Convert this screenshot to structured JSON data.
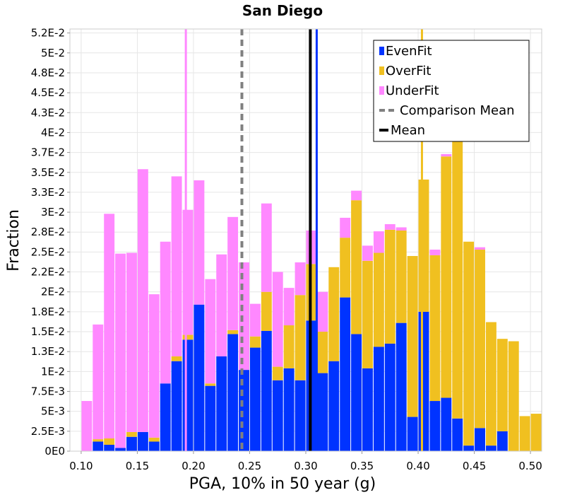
{
  "chart_data": {
    "type": "bar",
    "subtype": "stacked-histogram",
    "title": "San Diego",
    "xlabel": "PGA, 10% in 50 year (g)",
    "ylabel": "Fraction",
    "xlim": [
      0.09,
      0.51
    ],
    "ylim": [
      0,
      0.053
    ],
    "bin_width": 0.01,
    "x_ticks": [
      "0.10",
      "0.15",
      "0.20",
      "0.25",
      "0.30",
      "0.35",
      "0.40",
      "0.45",
      "0.50"
    ],
    "x_tick_values": [
      0.1,
      0.15,
      0.2,
      0.25,
      0.3,
      0.35,
      0.4,
      0.45,
      0.5
    ],
    "y_ticks": [
      "0E0",
      "2.5E-3",
      "5E-3",
      "7.5E-3",
      "1E-2",
      "1.3E-2",
      "1.5E-2",
      "1.8E-2",
      "2E-2",
      "2.2E-2",
      "2.5E-2",
      "2.8E-2",
      "3E-2",
      "3.3E-2",
      "3.5E-2",
      "3.7E-2",
      "4E-2",
      "4.3E-2",
      "4.5E-2",
      "4.8E-2",
      "5E-2",
      "5.2E-2"
    ],
    "y_tick_values": [
      0,
      0.0025,
      0.005,
      0.0075,
      0.01,
      0.0125,
      0.015,
      0.0175,
      0.02,
      0.0225,
      0.025,
      0.0275,
      0.03,
      0.0325,
      0.035,
      0.0375,
      0.04,
      0.0425,
      0.045,
      0.0475,
      0.05,
      0.0525
    ],
    "bin_starts": [
      0.09,
      0.1,
      0.11,
      0.12,
      0.13,
      0.14,
      0.15,
      0.16,
      0.17,
      0.18,
      0.19,
      0.2,
      0.21,
      0.22,
      0.23,
      0.24,
      0.25,
      0.26,
      0.27,
      0.28,
      0.29,
      0.3,
      0.31,
      0.32,
      0.33,
      0.34,
      0.35,
      0.36,
      0.37,
      0.38,
      0.39,
      0.4,
      0.41,
      0.42,
      0.43,
      0.44,
      0.45,
      0.46,
      0.47,
      0.48,
      0.49,
      0.5
    ],
    "series": [
      {
        "name": "EvenFit",
        "color": "#0033ff",
        "values": [
          0.0,
          0.0,
          0.0012,
          0.0008,
          0.0004,
          0.0018,
          0.0024,
          0.0012,
          0.0085,
          0.0113,
          0.014,
          0.0184,
          0.0082,
          0.0119,
          0.0147,
          0.0102,
          0.013,
          0.0151,
          0.0089,
          0.0104,
          0.0089,
          0.0164,
          0.0098,
          0.0113,
          0.0193,
          0.0147,
          0.0104,
          0.0131,
          0.0135,
          0.0161,
          0.0043,
          0.0175,
          0.0063,
          0.0067,
          0.0041,
          0.0007,
          0.0029,
          0.0007,
          0.0025,
          0.0,
          0.0,
          0.0
        ]
      },
      {
        "name": "OverFit",
        "color": "#f0c020",
        "values": [
          0.0,
          0.0,
          0.0003,
          0.0008,
          0.0,
          0.0006,
          0.0,
          0.0005,
          0.0,
          0.0006,
          0.0006,
          0.0,
          0.0003,
          0.0,
          0.0005,
          0.0,
          0.0014,
          0.0049,
          0.0017,
          0.0054,
          0.0107,
          0.0071,
          0.0052,
          0.0118,
          0.0075,
          0.0168,
          0.0135,
          0.0118,
          0.0143,
          0.0116,
          0.0202,
          0.0166,
          0.0183,
          0.0303,
          0.0358,
          0.0256,
          0.0224,
          0.0155,
          0.0116,
          0.0138,
          0.0044,
          0.0047
        ]
      },
      {
        "name": "UnderFit",
        "color": "#ff88ff",
        "values": [
          0.0,
          0.0063,
          0.0144,
          0.0282,
          0.0244,
          0.0225,
          0.033,
          0.018,
          0.0178,
          0.0226,
          0.0157,
          0.0156,
          0.0131,
          0.0128,
          0.0142,
          0.0135,
          0.0041,
          0.0111,
          0.0119,
          0.0047,
          0.0041,
          0.0042,
          0.005,
          0.0,
          0.0025,
          0.0012,
          0.0019,
          0.0027,
          0.0007,
          0.0004,
          0.0,
          0.0,
          0.0007,
          0.0003,
          0.0003,
          0.0,
          0.0003,
          0.0,
          0.0,
          0.0,
          0.0,
          0.0
        ]
      }
    ],
    "vertical_lines": [
      {
        "name": "Comparison Mean",
        "value": 0.2431,
        "color": "#808080",
        "style": "dashed"
      },
      {
        "name": "Mean",
        "value": 0.304,
        "color": "#000000",
        "style": "solid"
      },
      {
        "name": "EvenFit mean",
        "value": 0.3097,
        "color": "#0033ff",
        "style": "solid"
      },
      {
        "name": "OverFit mean",
        "value": 0.4034,
        "color": "#f0c020",
        "style": "solid"
      },
      {
        "name": "UnderFit mean",
        "value": 0.1932,
        "color": "#ff88ff",
        "style": "solid"
      }
    ],
    "legend": {
      "position": "top-right",
      "entries": [
        {
          "label": "EvenFit",
          "kind": "swatch",
          "color": "#0033ff"
        },
        {
          "label": "OverFit",
          "kind": "swatch",
          "color": "#f0c020"
        },
        {
          "label": "UnderFit",
          "kind": "swatch",
          "color": "#ff88ff"
        },
        {
          "label": "Comparison Mean",
          "kind": "dashed-line",
          "color": "#808080"
        },
        {
          "label": "Mean",
          "kind": "solid-line",
          "color": "#000000"
        }
      ]
    },
    "grid": true
  }
}
